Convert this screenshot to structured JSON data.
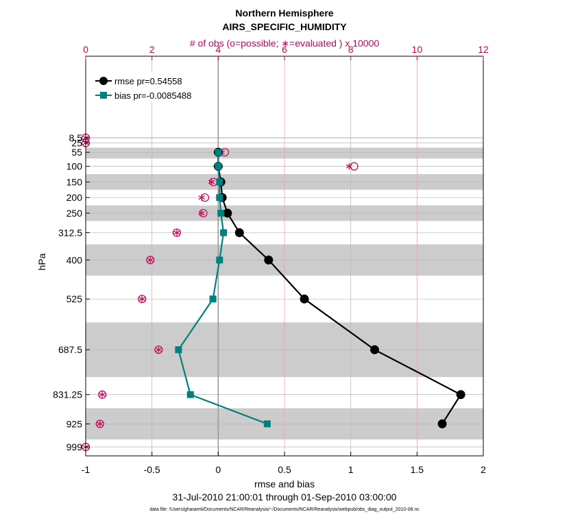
{
  "chart_data": {
    "type": "line",
    "title": "Northern Hemisphere",
    "subtitle": "AIRS_SPECIFIC_HUMIDITY",
    "top_axis_label": "# of obs (o=possible; ∗=evaluated ) x 10000",
    "xlabel": "rmse and bias",
    "ylabel": "hPa",
    "date_range": "31-Jul-2010 21:00:01 through 01-Sep-2010 03:00:00",
    "footer": "data file: /Users/gharamti/Documents/NCAR/Reanalysis/~/Documents/NCAR/Reanalysis/webpub/obs_diag_output_2010-08.nc",
    "xlim": [
      -1,
      2
    ],
    "x_ticks": [
      "-1",
      "-0.5",
      "0",
      "0.5",
      "1",
      "1.5",
      "2"
    ],
    "top_xlim": [
      0,
      12
    ],
    "top_ticks": [
      "0",
      "2",
      "4",
      "6",
      "8",
      "10",
      "12"
    ],
    "levels": [
      8.5,
      25,
      55,
      100,
      150,
      200,
      250,
      312.5,
      400,
      525,
      687.5,
      831.25,
      925,
      999
    ],
    "level_labels": [
      "8.5",
      "25",
      "55",
      "100",
      "150",
      "200",
      "250",
      "312.5",
      "400",
      "525",
      "687.5",
      "831.25",
      "925",
      "999"
    ],
    "shaded_bands_hPa": [
      [
        7,
        10
      ],
      [
        40,
        75
      ],
      [
        125,
        175
      ],
      [
        225,
        275
      ],
      [
        350,
        450
      ],
      [
        600,
        775
      ],
      [
        875,
        975
      ]
    ],
    "legend": [
      {
        "label": "rmse pr=0.54558",
        "color": "#000000"
      },
      {
        "label": "bias pr=-0.0085488",
        "color": "#00807f"
      }
    ],
    "series": [
      {
        "name": "rmse",
        "color": "#000000",
        "levels": [
          55,
          100,
          150,
          200,
          250,
          312.5,
          400,
          525,
          687.5,
          831.25,
          925
        ],
        "values": [
          0.0,
          0.0,
          0.02,
          0.03,
          0.07,
          0.16,
          0.38,
          0.65,
          1.18,
          1.83,
          1.69
        ]
      },
      {
        "name": "bias",
        "color": "#00807f",
        "levels": [
          55,
          100,
          150,
          200,
          250,
          312.5,
          400,
          525,
          687.5,
          831.25,
          925
        ],
        "values": [
          0.0,
          0.0,
          0.01,
          0.01,
          0.02,
          0.04,
          0.01,
          -0.04,
          -0.3,
          -0.21,
          0.37
        ]
      }
    ],
    "obs_counts": {
      "levels": [
        8.5,
        25,
        55,
        100,
        150,
        200,
        250,
        312.5,
        400,
        525,
        687.5,
        831.25,
        925,
        999
      ],
      "possible": [
        0.0,
        0.0,
        4.2,
        8.1,
        3.85,
        3.6,
        3.55,
        2.75,
        1.95,
        1.7,
        2.2,
        0.5,
        0.43,
        0.0
      ],
      "evaluated": [
        0.0,
        0.0,
        4.1,
        7.95,
        3.8,
        3.5,
        3.5,
        2.75,
        1.95,
        1.7,
        2.2,
        0.5,
        0.43,
        0.0
      ]
    },
    "colors": {
      "accent": "#cc0055",
      "rmse": "#000000",
      "bias": "#00807f",
      "band": "#cccccc"
    }
  }
}
